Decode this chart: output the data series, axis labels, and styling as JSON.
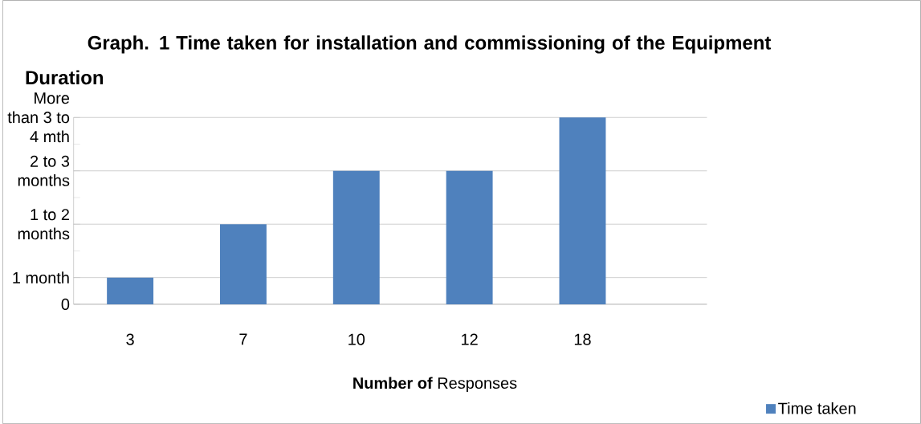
{
  "chart_data": {
    "type": "bar",
    "title": "Graph. 1 Time taken for installation and commissioning of the Equipment",
    "ylabel": "Duration",
    "xlabel": "**Number of** Responses",
    "categories": [
      "3",
      "7",
      "10",
      "12",
      "18"
    ],
    "series": [
      {
        "name": "Time taken",
        "color": "#4f81bd",
        "values": [
          1,
          3,
          5,
          5,
          7
        ]
      }
    ],
    "ylim": [
      0,
      7
    ],
    "yticks": [
      0,
      {
        "value": 1,
        "label": "1 month"
      },
      {
        "value": 2,
        "label": null
      },
      {
        "value": 3,
        "label": "1 to 2 months"
      },
      {
        "value": 4,
        "label": null
      },
      {
        "value": 5,
        "label": "2 to 3 months"
      },
      {
        "value": 6,
        "label": null
      },
      {
        "value": 7,
        "label": "More than 3 to 4 mth"
      }
    ],
    "grid": "y",
    "legend": "bottom right"
  }
}
